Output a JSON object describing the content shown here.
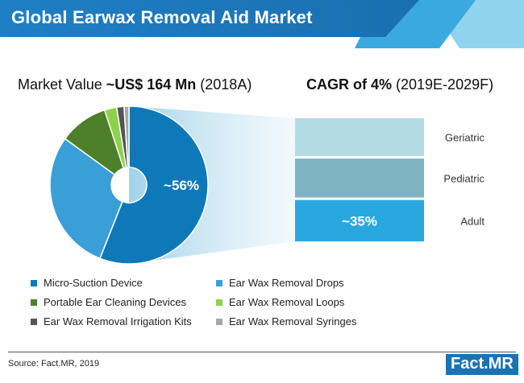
{
  "header": {
    "title": "Global Earwax Removal Aid Market"
  },
  "stats": {
    "market_label": "Market Value ",
    "market_value": "~US$ 164 Mn",
    "market_year": " (2018A)",
    "cagr_value": "CAGR of 4%",
    "cagr_period": " (2019E-2029F)"
  },
  "chart_data": [
    {
      "type": "pie",
      "subtype": "donut",
      "categories": [
        "Micro-Suction Device",
        "Ear Wax Removal Drops",
        "Portable Ear Cleaning Devices",
        "Ear Wax Removal Loops",
        "Ear Wax Removal Irrigation Kits",
        "Ear Wax Removal Syringes"
      ],
      "values": [
        56,
        29,
        10,
        2.5,
        1.5,
        1
      ],
      "colors": [
        "#0e79b8",
        "#3a9fd6",
        "#4e7f2a",
        "#8fd14b",
        "#555555",
        "#a8a8a8"
      ],
      "data_labels": [
        "~56%",
        "",
        "",
        "",
        "",
        ""
      ],
      "legend_position": "bottom"
    },
    {
      "type": "bar",
      "subtype": "stacked-100",
      "categories": [
        "Adult",
        "Pediatric",
        "Geriatric"
      ],
      "values": [
        35,
        33,
        32
      ],
      "colors": [
        "#29a8df",
        "#7fb3c2",
        "#b3dbe4"
      ],
      "data_labels": [
        "~35%",
        "",
        ""
      ]
    }
  ],
  "branding": {
    "source": "Source: Fact.MR, 2019",
    "logo_text": "Fact",
    "logo_dot": ".",
    "logo_suffix": "MR"
  }
}
